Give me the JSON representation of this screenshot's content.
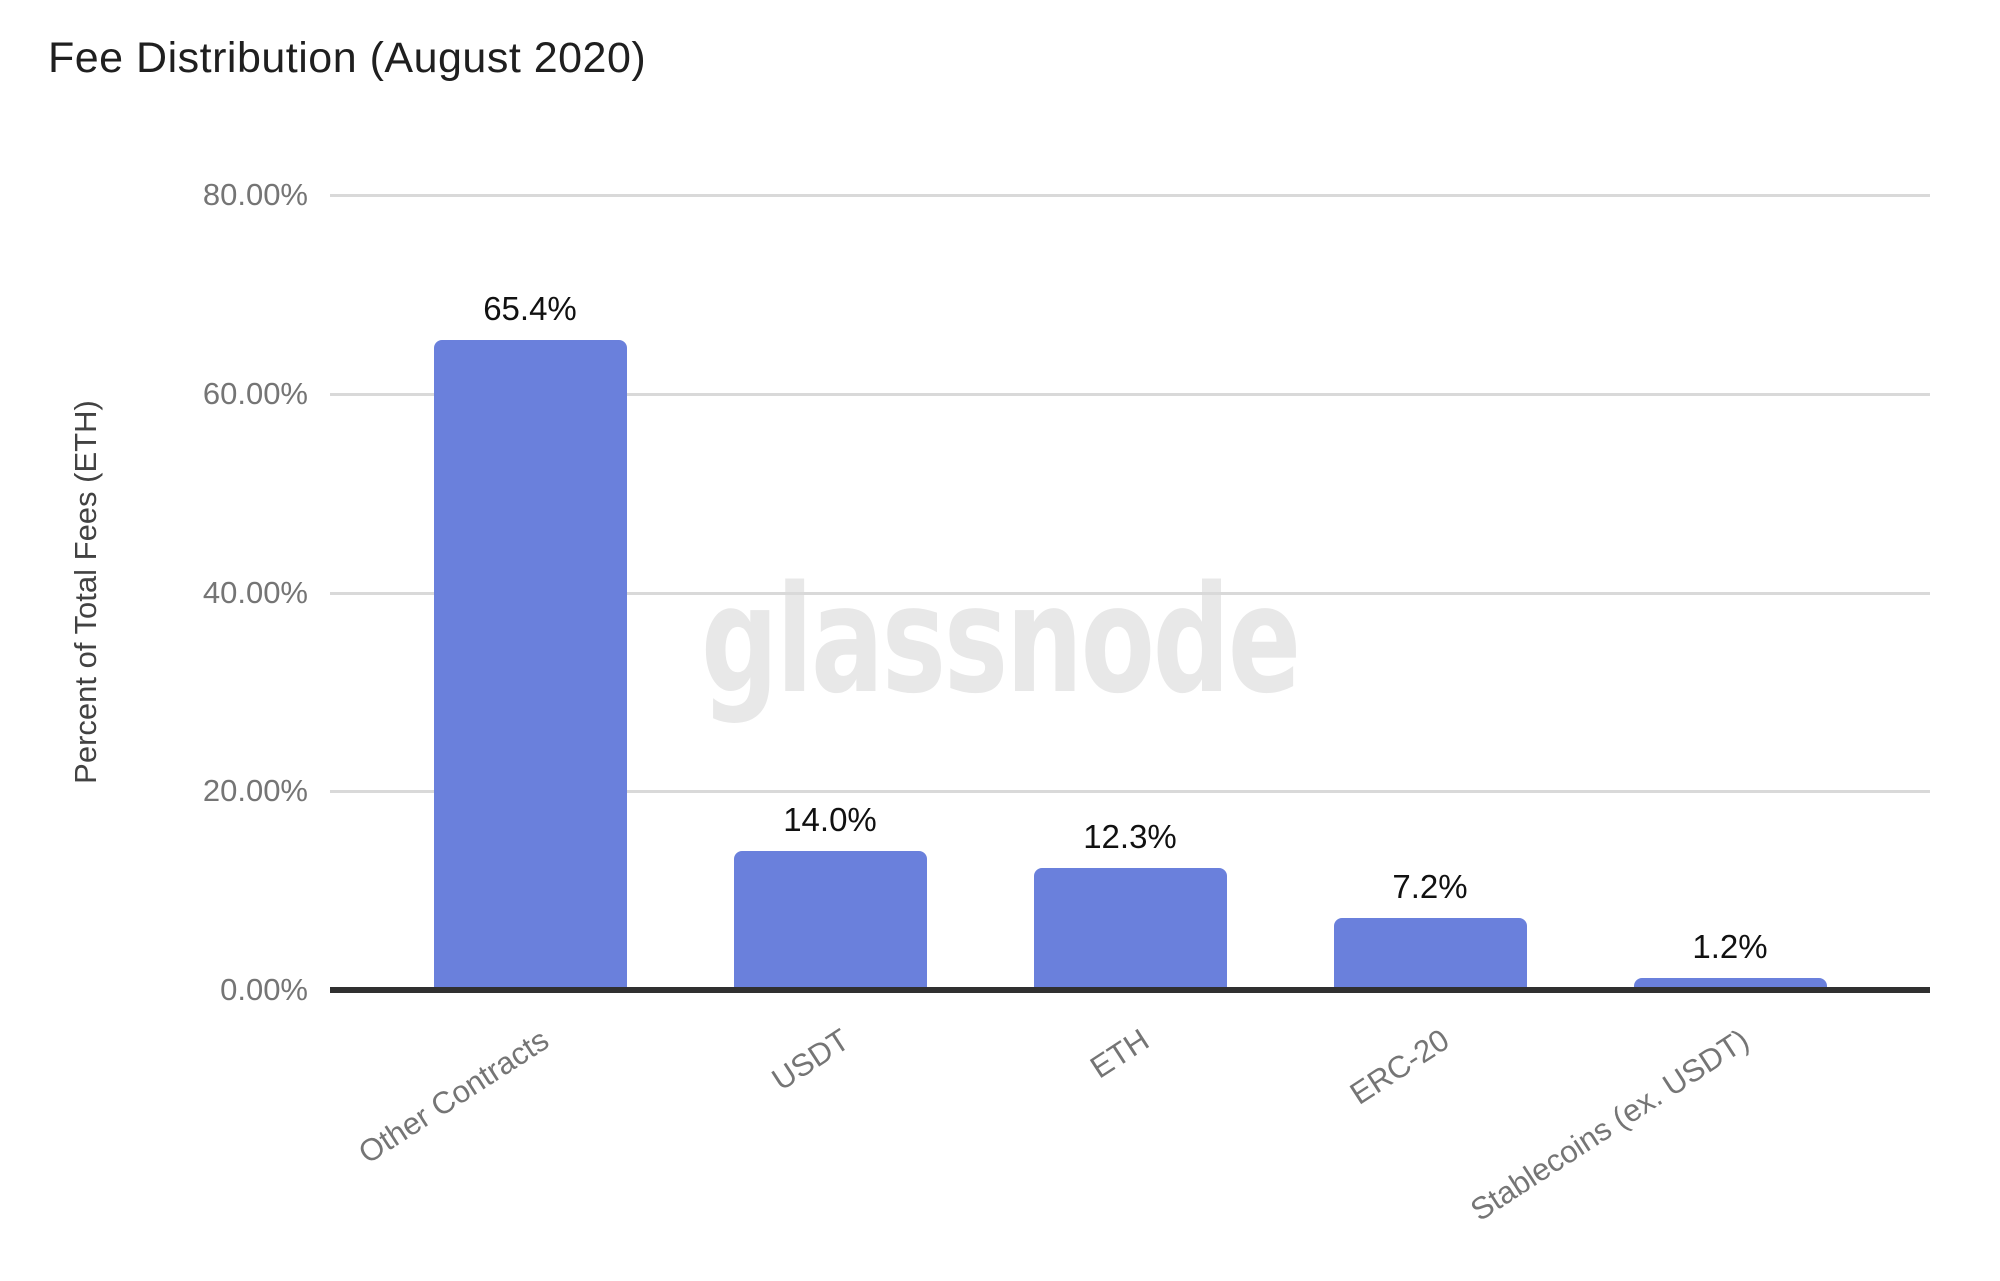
{
  "title": "Fee Distribution (August 2020)",
  "watermark": "glassnode",
  "chart_data": {
    "type": "bar",
    "title": "Fee Distribution (August 2020)",
    "categories": [
      "Other Contracts",
      "USDT",
      "ETH",
      "ERC-20",
      "Stablecoins (ex. USDT)"
    ],
    "values": [
      65.4,
      14.0,
      12.3,
      7.2,
      1.2
    ],
    "data_labels": [
      "65.4%",
      "14.0%",
      "12.3%",
      "7.2%",
      "1.2%"
    ],
    "xlabel": "",
    "ylabel": "Percent of Total Fees (ETH)",
    "ylim": [
      0,
      80
    ],
    "ytick_values": [
      0,
      20,
      40,
      60,
      80
    ],
    "ytick_labels": [
      "0.00%",
      "20.00%",
      "40.00%",
      "60.00%",
      "80.00%"
    ],
    "grid": true,
    "legend": false,
    "watermark": "glassnode"
  },
  "colors": {
    "background": "#FFFFFF",
    "bar": "#6A80DC",
    "gridline": "#D9D9D9",
    "axis_line": "#303030",
    "title": "#1F1F1F",
    "axis_title": "#424242",
    "tick_label": "#757575",
    "value_label": "#111111",
    "watermark": "#E8E8E8"
  }
}
